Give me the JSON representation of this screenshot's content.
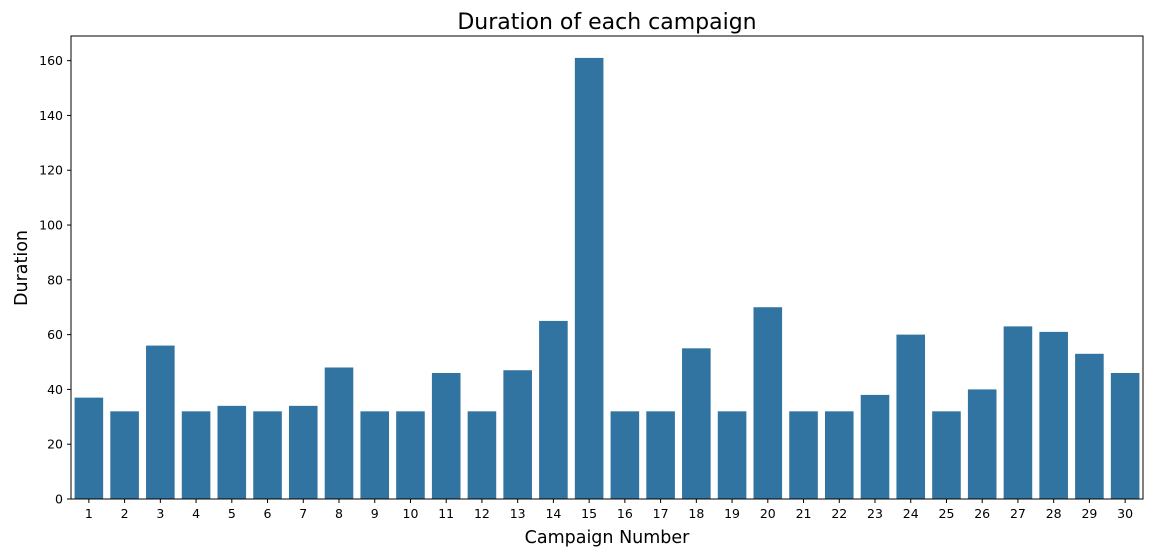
{
  "chart_data": {
    "type": "bar",
    "title": "Duration of each campaign",
    "xlabel": "Campaign Number",
    "ylabel": "Duration",
    "categories": [
      "1",
      "2",
      "3",
      "4",
      "5",
      "6",
      "7",
      "8",
      "9",
      "10",
      "11",
      "12",
      "13",
      "14",
      "15",
      "16",
      "17",
      "18",
      "19",
      "20",
      "21",
      "22",
      "23",
      "24",
      "25",
      "26",
      "27",
      "28",
      "29",
      "30"
    ],
    "values": [
      37,
      32,
      56,
      32,
      34,
      32,
      34,
      48,
      32,
      32,
      46,
      32,
      47,
      65,
      161,
      32,
      32,
      55,
      32,
      70,
      32,
      32,
      38,
      60,
      32,
      40,
      63,
      61,
      53,
      46
    ],
    "ylim": [
      0,
      169
    ],
    "yticks": [
      0,
      20,
      40,
      60,
      80,
      100,
      120,
      140,
      160
    ],
    "grid": false,
    "bar_color": "#3274a1"
  }
}
